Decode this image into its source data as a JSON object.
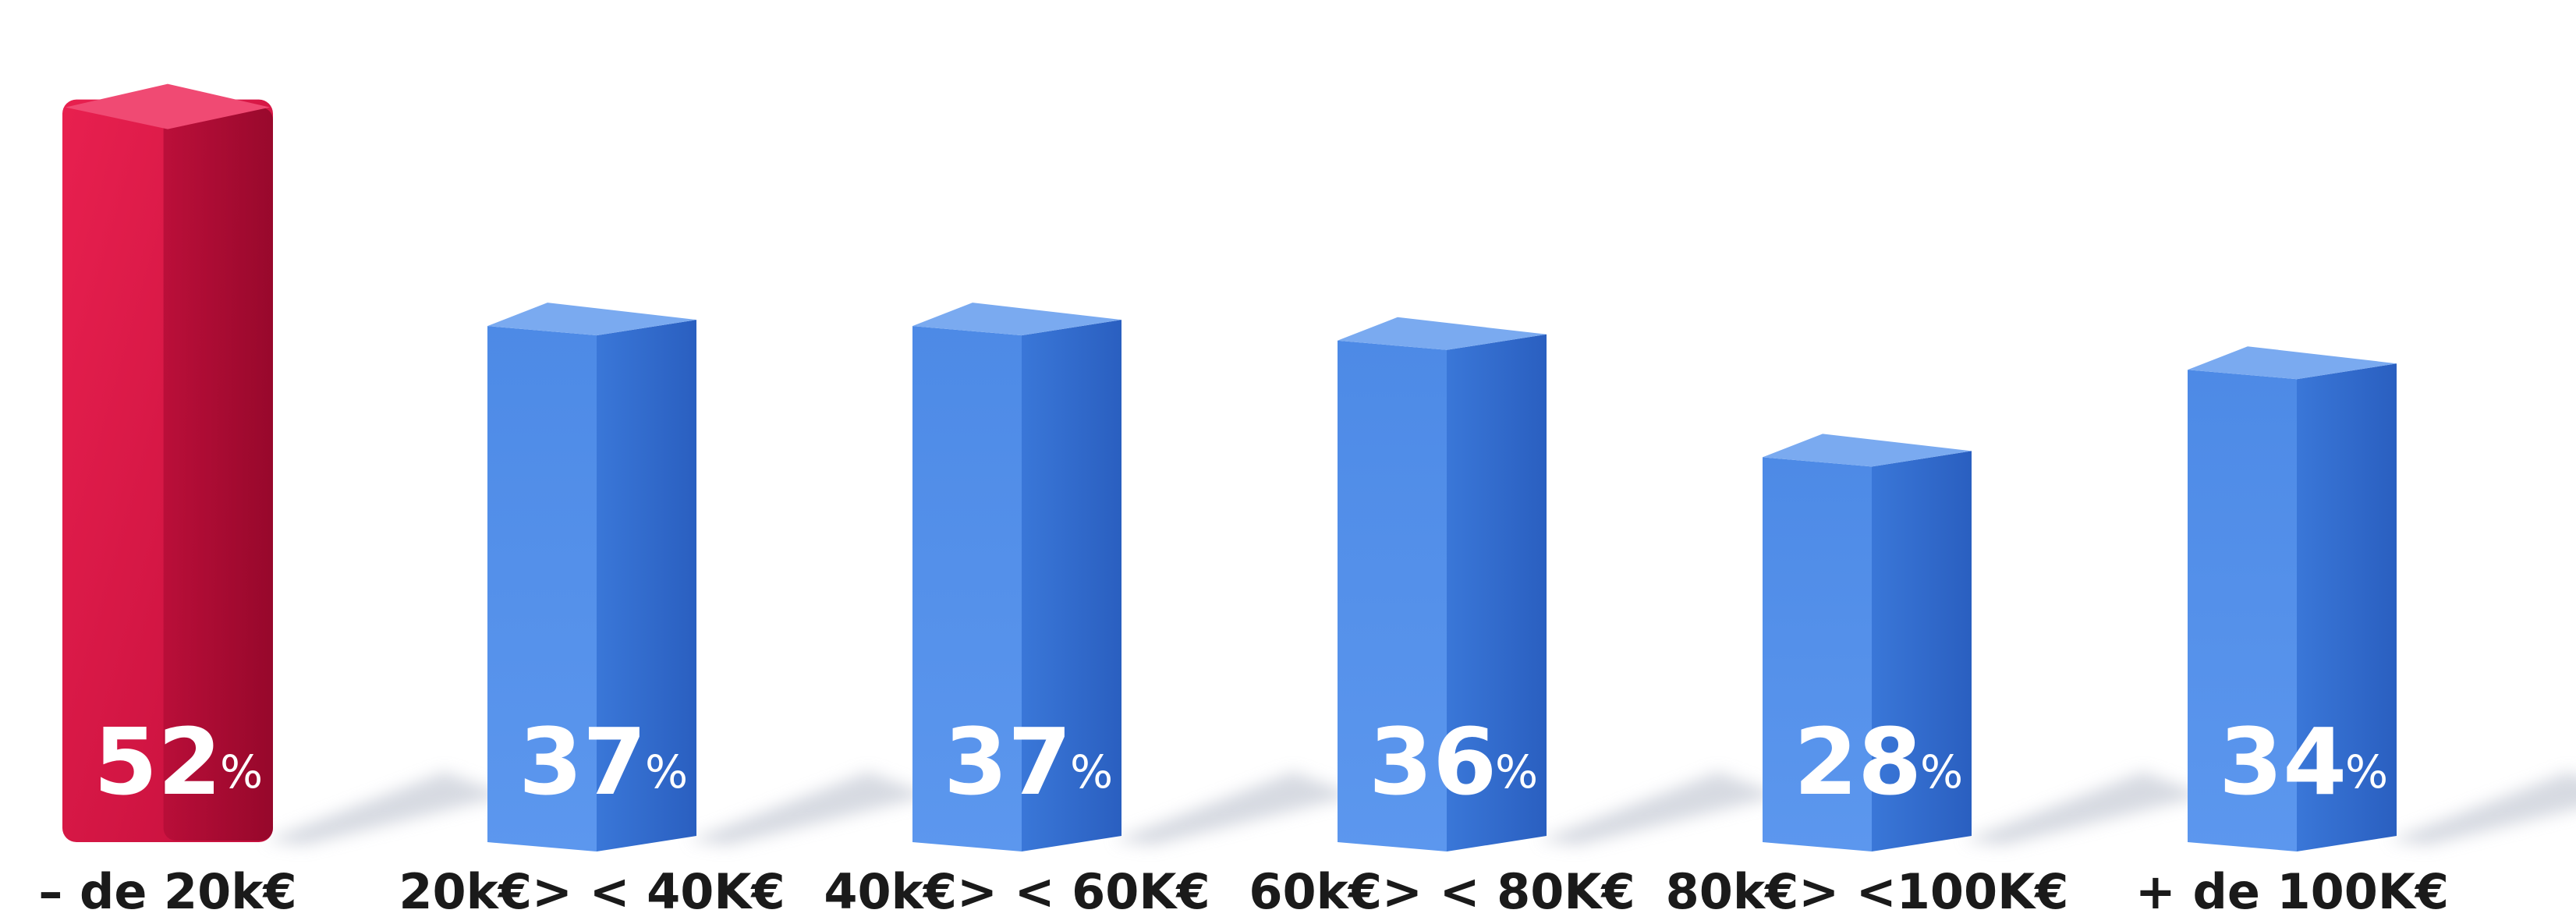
{
  "chart_data": {
    "type": "bar",
    "categories": [
      "– de 20k€",
      "20k€> < 40K€",
      "40k€> < 60K€",
      "60k€> < 80K€",
      "80k€> <100K€",
      "+ de 100K€"
    ],
    "values": [
      52,
      37,
      37,
      36,
      28,
      34
    ],
    "value_labels": [
      "52",
      "37",
      "37",
      "36",
      "28",
      "34"
    ],
    "unit": "%",
    "title": "",
    "xlabel": "",
    "ylabel": "",
    "ylim": [
      0,
      55
    ],
    "grid": false,
    "legend": "none",
    "style": "3d-bars",
    "colors": {
      "highlight_front": "#d81547",
      "highlight_side": "#a60a30",
      "highlight_top": "#f04a73",
      "base_front": "#4a88e3",
      "base_side": "#3069c9",
      "base_top": "#7aaaf0",
      "shadow": "#c9ced8"
    },
    "highlight_index": 0
  }
}
